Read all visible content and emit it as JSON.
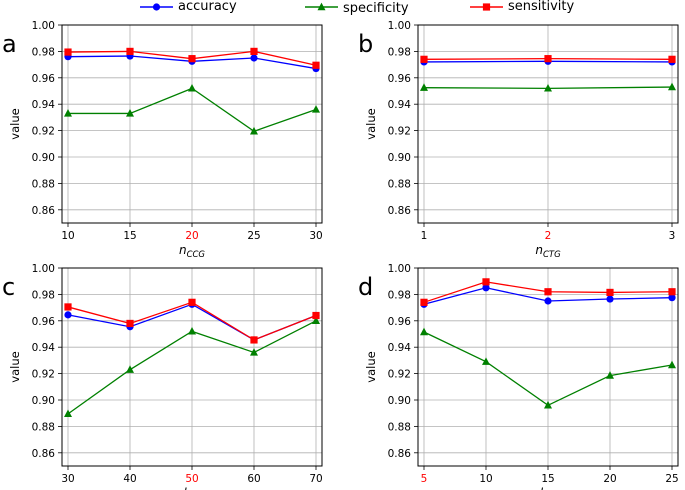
{
  "legend": {
    "position": "top-center",
    "entries": [
      {
        "label": "accuracy",
        "color": "#0000ff",
        "marker": "circle"
      },
      {
        "label": "specificity",
        "color": "#008000",
        "marker": "triangle"
      },
      {
        "label": "sensitivity",
        "color": "#ff0000",
        "marker": "square"
      }
    ]
  },
  "colors": {
    "accuracy": "#0000ff",
    "specificity": "#008000",
    "sensitivity": "#ff0000",
    "highlight_tick": "#ff0000",
    "grid": "#b0b0b0"
  },
  "chart_data": [
    {
      "type": "line",
      "panel_label": "a",
      "x": [
        10,
        15,
        20,
        25,
        30
      ],
      "xticks": [
        "10",
        "15",
        "20",
        "25",
        "30"
      ],
      "highlight_tick": "20",
      "xlabel_main": "n",
      "xlabel_sub": "CCG",
      "ylabel": "value",
      "ylim": [
        0.85,
        1.0
      ],
      "yticks": [
        "0.86",
        "0.88",
        "0.90",
        "0.92",
        "0.94",
        "0.96",
        "0.98",
        "1.00"
      ],
      "grid": true,
      "series": [
        {
          "name": "accuracy",
          "values": [
            0.976,
            0.9765,
            0.9725,
            0.975,
            0.967
          ]
        },
        {
          "name": "specificity",
          "values": [
            0.933,
            0.933,
            0.952,
            0.9195,
            0.936
          ]
        },
        {
          "name": "sensitivity",
          "values": [
            0.9795,
            0.98,
            0.9745,
            0.98,
            0.9695
          ]
        }
      ]
    },
    {
      "type": "line",
      "panel_label": "b",
      "x": [
        1,
        2,
        3
      ],
      "xticks": [
        "1",
        "2",
        "3"
      ],
      "highlight_tick": "2",
      "xlabel_main": "n",
      "xlabel_sub": "CTG",
      "ylabel": "value",
      "ylim": [
        0.85,
        1.0
      ],
      "yticks": [
        "0.86",
        "0.88",
        "0.90",
        "0.92",
        "0.94",
        "0.96",
        "0.98",
        "1.00"
      ],
      "grid": true,
      "series": [
        {
          "name": "accuracy",
          "values": [
            0.972,
            0.9725,
            0.972
          ]
        },
        {
          "name": "specificity",
          "values": [
            0.9525,
            0.952,
            0.953
          ]
        },
        {
          "name": "sensitivity",
          "values": [
            0.974,
            0.9745,
            0.974
          ]
        }
      ]
    },
    {
      "type": "line",
      "panel_label": "c",
      "x": [
        30,
        40,
        50,
        60,
        70
      ],
      "xticks": [
        "30",
        "40",
        "50",
        "60",
        "70"
      ],
      "highlight_tick": "50",
      "xlabel_main": "d",
      "xlabel_sub": "CCG",
      "ylabel": "value",
      "ylim": [
        0.85,
        1.0
      ],
      "yticks": [
        "0.86",
        "0.88",
        "0.90",
        "0.92",
        "0.94",
        "0.96",
        "0.98",
        "1.00"
      ],
      "grid": true,
      "series": [
        {
          "name": "accuracy",
          "values": [
            0.9645,
            0.9555,
            0.9725,
            0.9455,
            0.964
          ]
        },
        {
          "name": "specificity",
          "values": [
            0.8895,
            0.923,
            0.952,
            0.936,
            0.96
          ]
        },
        {
          "name": "sensitivity",
          "values": [
            0.9705,
            0.958,
            0.974,
            0.9455,
            0.964
          ]
        }
      ]
    },
    {
      "type": "line",
      "panel_label": "d",
      "x": [
        5,
        10,
        15,
        20,
        25
      ],
      "xticks": [
        "5",
        "10",
        "15",
        "20",
        "25"
      ],
      "highlight_tick": "5",
      "xlabel_main": "d",
      "xlabel_sub": "CTG",
      "ylabel": "value",
      "ylim": [
        0.85,
        1.0
      ],
      "yticks": [
        "0.86",
        "0.88",
        "0.90",
        "0.92",
        "0.94",
        "0.96",
        "0.98",
        "1.00"
      ],
      "grid": true,
      "series": [
        {
          "name": "accuracy",
          "values": [
            0.9725,
            0.985,
            0.975,
            0.9765,
            0.9775
          ]
        },
        {
          "name": "specificity",
          "values": [
            0.9515,
            0.929,
            0.896,
            0.9185,
            0.9265
          ]
        },
        {
          "name": "sensitivity",
          "values": [
            0.974,
            0.9895,
            0.982,
            0.9815,
            0.982
          ]
        }
      ]
    }
  ]
}
